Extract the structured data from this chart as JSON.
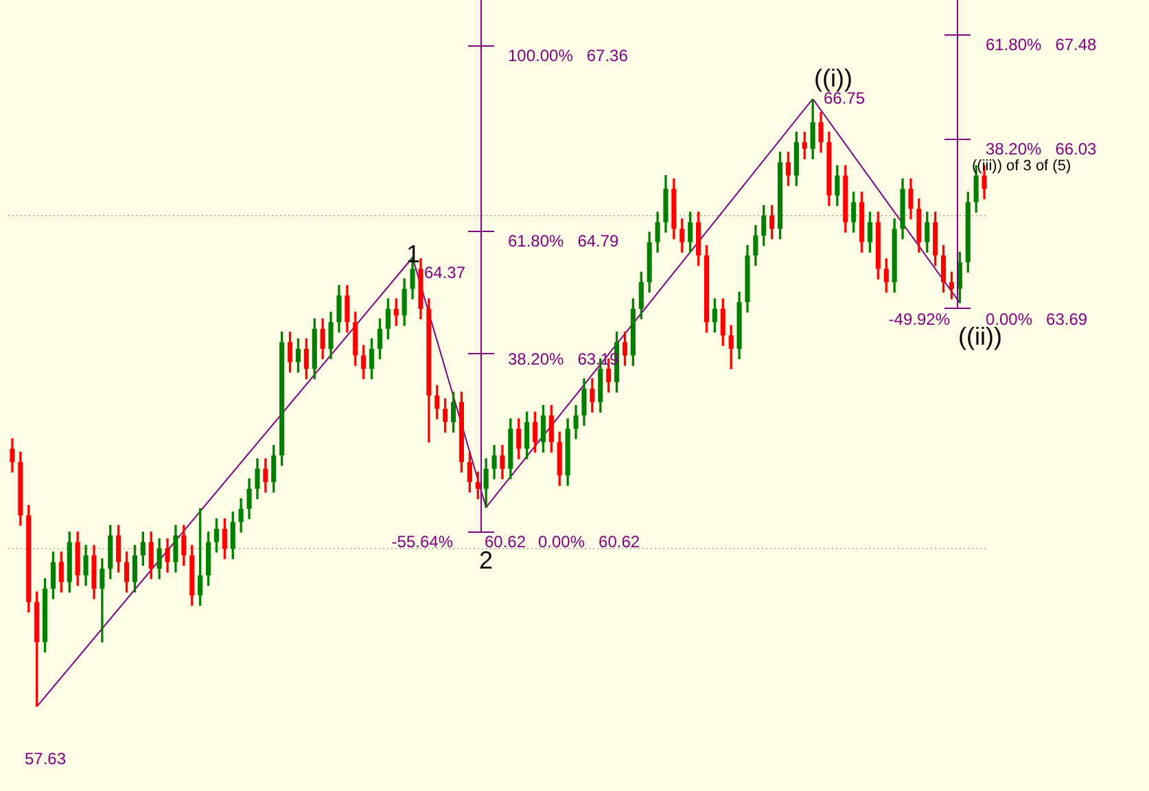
{
  "chart_data": {
    "type": "candlestick",
    "categories": [
      null,
      null,
      null,
      null,
      null,
      null,
      null,
      null,
      null,
      null,
      null,
      null,
      null,
      null,
      null,
      null,
      null,
      null,
      null,
      null,
      null,
      null,
      null,
      null,
      null,
      null,
      null,
      null,
      null,
      null,
      null,
      null,
      null,
      null,
      null,
      null,
      null,
      null,
      null,
      null,
      null,
      null,
      null,
      null,
      null,
      null,
      null,
      null,
      null,
      null,
      null,
      null,
      null,
      null,
      null,
      null,
      null,
      null,
      null,
      null,
      null,
      null,
      null,
      null,
      null,
      null,
      null,
      null,
      null,
      null,
      null,
      null,
      null,
      null,
      null,
      null,
      null,
      null,
      null,
      null,
      null,
      null,
      null,
      null,
      null,
      null,
      null,
      null,
      null,
      null,
      null,
      null,
      null,
      null,
      null,
      null,
      null,
      null,
      null,
      null,
      null,
      null,
      null,
      null,
      null,
      null,
      null,
      null,
      null,
      null,
      null,
      null,
      null,
      null,
      null,
      null,
      null,
      null,
      null,
      null
    ],
    "ohlc": [
      [
        61.5,
        61.65,
        61.15,
        61.3
      ],
      [
        61.3,
        61.45,
        60.35,
        60.5
      ],
      [
        60.5,
        60.65,
        59.05,
        59.2
      ],
      [
        59.2,
        59.35,
        57.63,
        58.6
      ],
      [
        58.6,
        59.55,
        58.45,
        59.4
      ],
      [
        59.4,
        59.95,
        59.25,
        59.8
      ],
      [
        59.8,
        59.95,
        59.35,
        59.5
      ],
      [
        59.5,
        60.25,
        59.35,
        60.1
      ],
      [
        60.1,
        60.25,
        59.45,
        59.6
      ],
      [
        59.6,
        60.05,
        59.45,
        59.9
      ],
      [
        59.9,
        60.05,
        59.25,
        59.4
      ],
      [
        59.4,
        59.85,
        58.6,
        59.7
      ],
      [
        59.7,
        60.35,
        59.55,
        60.2
      ],
      [
        60.2,
        60.35,
        59.65,
        59.8
      ],
      [
        59.8,
        59.95,
        59.35,
        59.5
      ],
      [
        59.5,
        60.05,
        59.35,
        59.9
      ],
      [
        59.9,
        60.25,
        59.75,
        60.1
      ],
      [
        60.1,
        60.25,
        59.55,
        59.7
      ],
      [
        59.7,
        60.15,
        59.55,
        60.0
      ],
      [
        60.0,
        60.15,
        59.65,
        59.8
      ],
      [
        59.8,
        60.35,
        59.65,
        60.2
      ],
      [
        60.2,
        60.35,
        59.75,
        59.9
      ],
      [
        59.9,
        60.05,
        59.15,
        59.3
      ],
      [
        59.3,
        60.6,
        59.15,
        59.6
      ],
      [
        59.6,
        60.25,
        59.45,
        60.1
      ],
      [
        60.1,
        60.45,
        59.95,
        60.3
      ],
      [
        60.3,
        60.45,
        59.85,
        60.0
      ],
      [
        60.0,
        60.55,
        59.85,
        60.4
      ],
      [
        60.4,
        60.75,
        60.25,
        60.6
      ],
      [
        60.6,
        61.05,
        60.45,
        60.9
      ],
      [
        60.9,
        61.35,
        60.75,
        61.2
      ],
      [
        61.2,
        61.35,
        60.85,
        61.0
      ],
      [
        61.0,
        61.55,
        60.85,
        61.4
      ],
      [
        61.4,
        63.25,
        61.25,
        63.1
      ],
      [
        63.1,
        63.25,
        62.65,
        62.8
      ],
      [
        62.8,
        63.15,
        62.65,
        63.0
      ],
      [
        63.0,
        63.15,
        62.55,
        62.7
      ],
      [
        62.7,
        63.45,
        62.55,
        63.3
      ],
      [
        63.3,
        63.45,
        62.85,
        63.0
      ],
      [
        63.0,
        63.55,
        62.85,
        63.4
      ],
      [
        63.4,
        63.95,
        63.25,
        63.8
      ],
      [
        63.8,
        63.95,
        63.25,
        63.4
      ],
      [
        63.4,
        63.55,
        62.75,
        62.9
      ],
      [
        62.9,
        63.05,
        62.55,
        62.7
      ],
      [
        62.7,
        63.15,
        62.55,
        63.0
      ],
      [
        63.0,
        63.45,
        62.85,
        63.3
      ],
      [
        63.3,
        63.75,
        63.15,
        63.6
      ],
      [
        63.6,
        63.75,
        63.35,
        63.5
      ],
      [
        63.5,
        64.05,
        63.35,
        63.9
      ],
      [
        63.9,
        64.37,
        63.75,
        64.2
      ],
      [
        64.2,
        64.35,
        63.45,
        63.6
      ],
      [
        63.6,
        63.75,
        61.6,
        62.3
      ],
      [
        62.3,
        62.45,
        61.95,
        62.1
      ],
      [
        62.1,
        62.25,
        61.75,
        61.9
      ],
      [
        61.9,
        62.35,
        61.75,
        62.2
      ],
      [
        62.2,
        62.35,
        61.15,
        61.3
      ],
      [
        61.3,
        61.45,
        60.85,
        61.0
      ],
      [
        61.0,
        61.15,
        60.75,
        60.9
      ],
      [
        60.9,
        61.35,
        60.62,
        61.2
      ],
      [
        61.2,
        61.55,
        61.05,
        61.4
      ],
      [
        61.4,
        61.55,
        61.05,
        61.2
      ],
      [
        61.2,
        61.95,
        61.05,
        61.8
      ],
      [
        61.8,
        61.95,
        61.35,
        61.5
      ],
      [
        61.5,
        62.05,
        61.35,
        61.9
      ],
      [
        61.9,
        62.05,
        61.45,
        61.6
      ],
      [
        61.6,
        62.15,
        61.45,
        62.0
      ],
      [
        62.0,
        62.15,
        61.45,
        61.6
      ],
      [
        61.6,
        61.75,
        60.95,
        61.1
      ],
      [
        61.1,
        61.95,
        60.95,
        61.8
      ],
      [
        61.8,
        62.15,
        61.65,
        62.0
      ],
      [
        62.0,
        62.55,
        61.85,
        62.4
      ],
      [
        62.4,
        62.55,
        62.05,
        62.2
      ],
      [
        62.2,
        62.85,
        62.05,
        62.7
      ],
      [
        62.7,
        62.85,
        62.35,
        62.5
      ],
      [
        62.5,
        63.25,
        62.35,
        63.1
      ],
      [
        63.1,
        63.25,
        62.75,
        62.9
      ],
      [
        62.9,
        63.75,
        62.75,
        63.6
      ],
      [
        63.6,
        64.15,
        63.45,
        64.0
      ],
      [
        64.0,
        64.75,
        63.85,
        64.6
      ],
      [
        64.6,
        65.05,
        64.45,
        64.9
      ],
      [
        64.9,
        65.6,
        64.75,
        65.4
      ],
      [
        65.4,
        65.55,
        64.65,
        64.8
      ],
      [
        64.8,
        64.95,
        64.45,
        64.6
      ],
      [
        64.6,
        65.05,
        64.45,
        64.9
      ],
      [
        64.9,
        65.05,
        64.25,
        64.4
      ],
      [
        64.4,
        64.55,
        63.25,
        63.4
      ],
      [
        63.4,
        63.75,
        63.25,
        63.6
      ],
      [
        63.6,
        63.75,
        63.05,
        63.2
      ],
      [
        63.2,
        63.35,
        62.7,
        63.0
      ],
      [
        63.0,
        63.85,
        62.85,
        63.7
      ],
      [
        63.7,
        64.55,
        63.55,
        64.4
      ],
      [
        64.4,
        64.85,
        64.25,
        64.7
      ],
      [
        64.7,
        65.15,
        64.55,
        65.0
      ],
      [
        65.0,
        65.15,
        64.65,
        64.8
      ],
      [
        64.8,
        65.95,
        64.65,
        65.8
      ],
      [
        65.8,
        65.95,
        65.45,
        65.6
      ],
      [
        65.6,
        66.25,
        65.45,
        66.1
      ],
      [
        66.1,
        66.25,
        65.85,
        66.0
      ],
      [
        66.0,
        66.75,
        65.85,
        66.4
      ],
      [
        66.4,
        66.55,
        65.95,
        66.1
      ],
      [
        66.1,
        66.25,
        65.15,
        65.3
      ],
      [
        65.3,
        65.75,
        65.15,
        65.6
      ],
      [
        65.6,
        65.75,
        64.75,
        64.9
      ],
      [
        64.9,
        65.35,
        64.75,
        65.2
      ],
      [
        65.2,
        65.35,
        64.45,
        64.6
      ],
      [
        64.6,
        65.05,
        64.45,
        64.9
      ],
      [
        64.9,
        65.05,
        64.05,
        64.2
      ],
      [
        64.2,
        64.35,
        63.85,
        64.0
      ],
      [
        64.0,
        64.95,
        63.85,
        64.8
      ],
      [
        64.8,
        65.55,
        64.65,
        65.4
      ],
      [
        65.4,
        65.55,
        64.95,
        65.1
      ],
      [
        65.1,
        65.25,
        64.45,
        64.6
      ],
      [
        64.6,
        65.05,
        64.45,
        64.9
      ],
      [
        64.9,
        65.05,
        64.25,
        64.4
      ],
      [
        64.4,
        64.55,
        63.85,
        64.0
      ],
      [
        64.0,
        64.15,
        63.75,
        63.9
      ],
      [
        63.9,
        64.45,
        63.69,
        64.3
      ],
      [
        64.3,
        65.35,
        64.15,
        65.2
      ],
      [
        65.2,
        65.75,
        65.05,
        65.6
      ],
      [
        65.6,
        65.75,
        65.25,
        65.4
      ]
    ],
    "colors": [
      "#ff0000",
      "#ff0000",
      "#ff0000",
      "#ff0000",
      "#008000",
      "#008000",
      "#ff0000",
      "#008000",
      "#ff0000",
      "#008000",
      "#ff0000",
      "#008000",
      "#008000",
      "#ff0000",
      "#ff0000",
      "#008000",
      "#008000",
      "#ff0000",
      "#008000",
      "#ff0000",
      "#008000",
      "#ff0000",
      "#ff0000",
      "#008000",
      "#008000",
      "#008000",
      "#ff0000",
      "#008000",
      "#008000",
      "#008000",
      "#008000",
      "#ff0000",
      "#008000",
      "#008000",
      "#ff0000",
      "#008000",
      "#ff0000",
      "#008000",
      "#ff0000",
      "#008000",
      "#008000",
      "#ff0000",
      "#ff0000",
      "#ff0000",
      "#008000",
      "#008000",
      "#008000",
      "#ff0000",
      "#008000",
      "#008000",
      "#ff0000",
      "#ff0000",
      "#ff0000",
      "#ff0000",
      "#008000",
      "#ff0000",
      "#ff0000",
      "#ff0000",
      "#008000",
      "#008000",
      "#ff0000",
      "#008000",
      "#ff0000",
      "#008000",
      "#ff0000",
      "#008000",
      "#ff0000",
      "#ff0000",
      "#008000",
      "#008000",
      "#008000",
      "#ff0000",
      "#008000",
      "#ff0000",
      "#008000",
      "#ff0000",
      "#008000",
      "#008000",
      "#008000",
      "#008000",
      "#008000",
      "#ff0000",
      "#ff0000",
      "#008000",
      "#ff0000",
      "#ff0000",
      "#008000",
      "#ff0000",
      "#ff0000",
      "#008000",
      "#008000",
      "#008000",
      "#008000",
      "#ff0000",
      "#008000",
      "#ff0000",
      "#008000",
      "#ff0000",
      "#008000",
      "#ff0000",
      "#ff0000",
      "#008000",
      "#ff0000",
      "#008000",
      "#ff0000",
      "#008000",
      "#ff0000",
      "#ff0000",
      "#008000",
      "#008000",
      "#ff0000",
      "#ff0000",
      "#008000",
      "#ff0000",
      "#ff0000",
      "#ff0000",
      "#008000",
      "#008000",
      "#008000",
      "#ff0000"
    ],
    "series": [
      {
        "type": "line",
        "color": "#800080",
        "values": [
          null,
          null,
          null,
          57.63,
          null,
          null,
          null,
          null,
          null,
          null,
          null,
          null,
          null,
          null,
          null,
          null,
          null,
          null,
          null,
          null,
          null,
          null,
          null,
          null,
          null,
          null,
          null,
          null,
          null,
          null,
          null,
          null,
          null,
          null,
          null,
          null,
          null,
          null,
          null,
          null,
          null,
          null,
          null,
          null,
          null,
          null,
          null,
          null,
          null,
          64.37,
          null,
          null,
          null,
          null,
          null,
          null,
          null,
          null,
          60.62,
          null,
          null,
          null,
          null,
          null,
          null,
          null,
          null,
          null,
          null,
          null,
          null,
          null,
          null,
          null,
          null,
          null,
          null,
          null,
          null,
          null,
          null,
          null,
          null,
          null,
          null,
          null,
          null,
          null,
          null,
          null,
          null,
          null,
          null,
          null,
          null,
          null,
          null,
          null,
          66.75,
          null,
          null,
          null,
          null,
          null,
          null,
          null,
          null,
          null,
          null,
          null,
          null,
          null,
          null,
          null,
          null,
          null,
          63.69,
          null,
          null,
          null
        ]
      }
    ],
    "yticks": [
      {
        "value": 60,
        "label": null
      },
      {
        "value": 65,
        "label": null
      }
    ],
    "grid": "y",
    "legend": false,
    "marker": "none",
    "annotations": [
      "100.00%   67.36",
      "61.80%   64.79",
      "38.20%   63.19",
      "0.00%   60.62",
      "-55.64%",
      "61.80%   67.48",
      "38.20%   66.03",
      "0.00%   63.69",
      "-49.92%",
      "57.63",
      "64.37",
      "60.62",
      "66.75",
      "1",
      "2",
      "((i))",
      "((ii))",
      "((iii)) of 3 of (5)"
    ]
  }
}
